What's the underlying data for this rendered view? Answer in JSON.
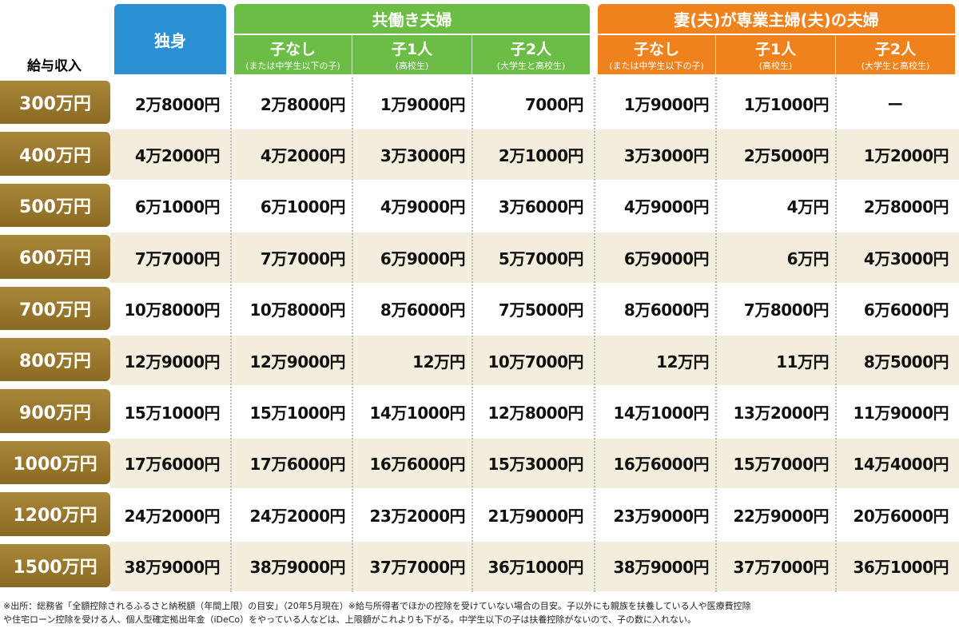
{
  "header": {
    "income_label": "給与収入",
    "single": "独身",
    "dual_income": {
      "title": "共働き夫婦",
      "columns": [
        {
          "name": "子なし",
          "note": "(または中学生以下の子)"
        },
        {
          "name": "子1人",
          "note": "(高校生)"
        },
        {
          "name": "子2人",
          "note": "(大学生と高校生)"
        }
      ]
    },
    "single_earner": {
      "title": "妻(夫)が専業主婦(夫)の夫婦",
      "columns": [
        {
          "name": "子なし",
          "note": "(または中学生以下の子)"
        },
        {
          "name": "子1人",
          "note": "(高校生)"
        },
        {
          "name": "子2人",
          "note": "(大学生と高校生)"
        }
      ]
    }
  },
  "table": {
    "rows": [
      {
        "income": "300万円",
        "values": [
          "2万8000円",
          "2万8000円",
          "1万9000円",
          "7000円",
          "1万9000円",
          "1万1000円",
          "ー"
        ]
      },
      {
        "income": "400万円",
        "values": [
          "4万2000円",
          "4万2000円",
          "3万3000円",
          "2万1000円",
          "3万3000円",
          "2万5000円",
          "1万2000円"
        ]
      },
      {
        "income": "500万円",
        "values": [
          "6万1000円",
          "6万1000円",
          "4万9000円",
          "3万6000円",
          "4万9000円",
          "4万円",
          "2万8000円"
        ]
      },
      {
        "income": "600万円",
        "values": [
          "7万7000円",
          "7万7000円",
          "6万9000円",
          "5万7000円",
          "6万9000円",
          "6万円",
          "4万3000円"
        ]
      },
      {
        "income": "700万円",
        "values": [
          "10万8000円",
          "10万8000円",
          "8万6000円",
          "7万5000円",
          "8万6000円",
          "7万8000円",
          "6万6000円"
        ]
      },
      {
        "income": "800万円",
        "values": [
          "12万9000円",
          "12万9000円",
          "12万円",
          "10万7000円",
          "12万円",
          "11万円",
          "8万5000円"
        ]
      },
      {
        "income": "900万円",
        "values": [
          "15万1000円",
          "15万1000円",
          "14万1000円",
          "12万8000円",
          "14万1000円",
          "13万2000円",
          "11万9000円"
        ]
      },
      {
        "income": "1000万円",
        "values": [
          "17万6000円",
          "17万6000円",
          "16万6000円",
          "15万3000円",
          "16万6000円",
          "15万7000円",
          "14万4000円"
        ]
      },
      {
        "income": "1200万円",
        "values": [
          "24万2000円",
          "24万2000円",
          "23万2000円",
          "21万9000円",
          "23万9000円",
          "22万9000円",
          "20万6000円"
        ]
      },
      {
        "income": "1500万円",
        "values": [
          "38万9000円",
          "38万9000円",
          "37万7000円",
          "36万1000円",
          "38万9000円",
          "37万7000円",
          "36万1000円"
        ]
      }
    ]
  },
  "footnote": [
    "※出所：総務省「全額控除されるふるさと納税額（年間上限）の目安」（20年5月現在）※給与所得者でほかの控除を受けていない場合の目安。子以外にも親族を扶養している人や医療費控除",
    "や住宅ローン控除を受ける人、個人型確定拠出年金（iDeCo）をやっている人などは、上限額がこれよりも下がる。中学生以下の子は扶養控除がないので、子の数に入れない。"
  ]
}
